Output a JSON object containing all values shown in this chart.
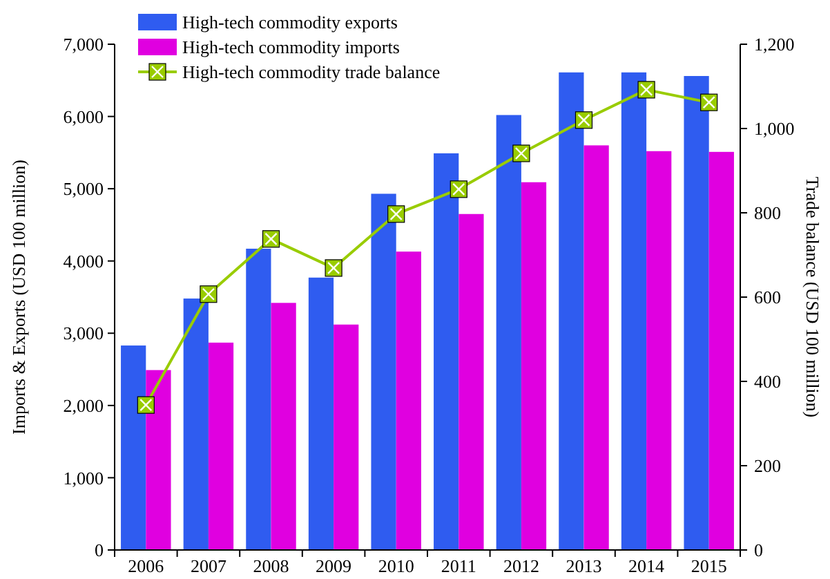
{
  "chart_data": {
    "type": "bar",
    "categories": [
      "2006",
      "2007",
      "2008",
      "2009",
      "2010",
      "2011",
      "2012",
      "2013",
      "2014",
      "2015"
    ],
    "ylabel": "Imports & Exports (USD 100 million)",
    "y2label": "Trade balance (USD 100 million)",
    "ylim": [
      0,
      7000
    ],
    "yticks": [
      {
        "value": 0,
        "label": "0"
      },
      {
        "value": 1000,
        "label": "1,000"
      },
      {
        "value": 2000,
        "label": "2,000"
      },
      {
        "value": 3000,
        "label": "3,000"
      },
      {
        "value": 4000,
        "label": "4,000"
      },
      {
        "value": 5000,
        "label": "5,000"
      },
      {
        "value": 6000,
        "label": "6,000"
      },
      {
        "value": 7000,
        "label": "7,000"
      }
    ],
    "y2lim": [
      0,
      1200
    ],
    "y2ticks": [
      0,
      200,
      400,
      600,
      800,
      {
        "value": 1000,
        "label": "1,000"
      },
      {
        "value": 1200,
        "label": "1,200"
      }
    ],
    "legend": "top left",
    "grid": false,
    "series": [
      {
        "name": "High-tech commodity exports",
        "color": "#2f5cf0",
        "values": [
          2830,
          3480,
          4170,
          3770,
          4930,
          5490,
          6020,
          6610,
          6610,
          6560
        ]
      },
      {
        "name": "High-tech commodity imports",
        "color": "#e000e0",
        "values": [
          2490,
          2870,
          3420,
          3120,
          4130,
          4650,
          5090,
          5600,
          5520,
          5510
        ]
      },
      {
        "name": "High-tech commodity trade balance",
        "type": "line",
        "axis": "y2",
        "color": "#99cc00",
        "marker": "square",
        "values": [
          344,
          607,
          738,
          669,
          797,
          856,
          941,
          1020,
          1092,
          1062
        ]
      }
    ]
  }
}
